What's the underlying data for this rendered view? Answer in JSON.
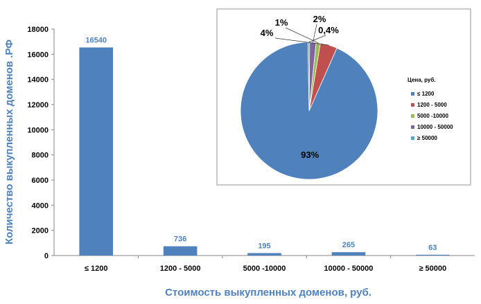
{
  "chart_data": [
    {
      "type": "bar",
      "categories": [
        "≤ 1200",
        "1200 - 5000",
        "5000 -10000",
        "10000 - 50000",
        "≥ 50000"
      ],
      "values": [
        16540,
        736,
        195,
        265,
        63
      ],
      "data_labels": [
        "16540",
        "736",
        "195",
        "265",
        "63"
      ],
      "xlabel": "Стоимость выкупленных доменов, руб.",
      "ylabel": "Количество выкупленных доменов .РФ",
      "ylim": [
        0,
        18000
      ],
      "yticks": [
        0,
        2000,
        4000,
        6000,
        8000,
        10000,
        12000,
        14000,
        16000,
        18000
      ],
      "grid": false,
      "color": "#4F81BD"
    },
    {
      "type": "pie",
      "legend_title": "Цена, руб.",
      "legend_position": "right",
      "slices": [
        {
          "name": "≤ 1200",
          "value": 93,
          "label": "93%",
          "color": "#4F81BD"
        },
        {
          "name": "1200 - 5000",
          "value": 4,
          "label": "4%",
          "color": "#C0504D"
        },
        {
          "name": "5000 -10000",
          "value": 1,
          "label": "1%",
          "color": "#9BBB59"
        },
        {
          "name": "10000 - 50000",
          "value": 1.5,
          "label": "2%",
          "color": "#8064A2"
        },
        {
          "name": "≥ 50000",
          "value": 0.4,
          "label": "0,4%",
          "color": "#4BACC6"
        }
      ]
    }
  ]
}
